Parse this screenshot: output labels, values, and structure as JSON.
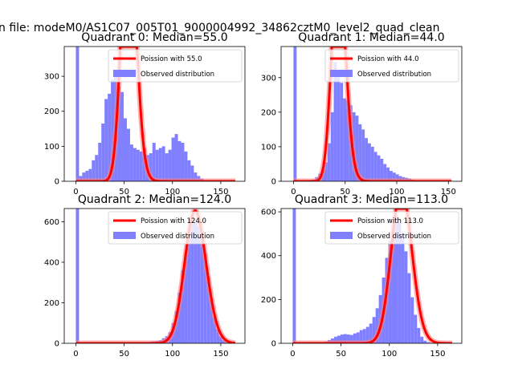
{
  "suptitle": "n file: modeM0/AS1C07_005T01_9000004992_34862cztM0_level2_quad_clean",
  "legend_labels": {
    "curve_prefix": "Poission with ",
    "hist": "Observed distribution"
  },
  "colors": {
    "hist": "#8080ff",
    "curve": "#ff0000",
    "curve_glow": "#ff8080"
  },
  "chart_data": [
    {
      "type": "bar",
      "title": "Quadrant 0: Median=55.0",
      "median": 55.0,
      "xlim": [
        -12,
        175
      ],
      "ylim": [
        0,
        385
      ],
      "xticks": [
        0,
        50,
        100,
        150
      ],
      "yticks": [
        0,
        100,
        200,
        300
      ],
      "bin_edges_start": 0,
      "bin_width": 3.3,
      "counts": [
        385,
        15,
        25,
        30,
        35,
        60,
        75,
        110,
        165,
        235,
        250,
        290,
        305,
        270,
        255,
        180,
        150,
        105,
        95,
        90,
        85,
        95,
        75,
        80,
        110,
        90,
        95,
        100,
        80,
        90,
        125,
        135,
        115,
        110,
        85,
        60,
        45,
        25,
        15,
        8,
        3,
        1
      ],
      "curve_label": "Poission with 55.0",
      "hist_label": "Observed distribution"
    },
    {
      "type": "bar",
      "title": "Quadrant 1: Median=44.0",
      "median": 44.0,
      "xlim": [
        -12,
        163
      ],
      "ylim": [
        0,
        390
      ],
      "xticks": [
        0,
        50,
        100,
        150
      ],
      "yticks": [
        0,
        100,
        200,
        300
      ],
      "bin_edges_start": 0,
      "bin_width": 3.0,
      "counts": [
        390,
        0,
        0,
        0,
        0,
        0,
        5,
        12,
        22,
        35,
        55,
        110,
        200,
        345,
        310,
        285,
        240,
        235,
        220,
        200,
        190,
        165,
        150,
        125,
        110,
        100,
        85,
        75,
        65,
        50,
        40,
        30,
        25,
        20,
        15,
        12,
        10,
        8,
        5,
        3,
        2,
        1
      ],
      "curve_label": "Poission with 44.0",
      "hist_label": "Observed distribution"
    },
    {
      "type": "bar",
      "title": "Quadrant 2: Median=124.0",
      "median": 124.0,
      "xlim": [
        -12,
        175
      ],
      "ylim": [
        0,
        665
      ],
      "xticks": [
        0,
        50,
        100,
        150
      ],
      "yticks": [
        0,
        200,
        400,
        600
      ],
      "bin_edges_start": 0,
      "bin_width": 3.3,
      "counts": [
        665,
        0,
        0,
        0,
        0,
        0,
        0,
        0,
        0,
        0,
        0,
        0,
        0,
        0,
        0,
        0,
        0,
        0,
        0,
        0,
        0,
        3,
        5,
        8,
        10,
        12,
        15,
        25,
        35,
        55,
        100,
        160,
        250,
        360,
        440,
        520,
        590,
        600,
        580,
        520,
        440,
        330,
        220,
        130,
        70,
        35,
        15,
        5,
        2
      ],
      "curve_label": "Poission with 124.0",
      "hist_label": "Observed distribution"
    },
    {
      "type": "bar",
      "title": "Quadrant 3: Median=113.0",
      "median": 113.0,
      "xlim": [
        -12,
        175
      ],
      "ylim": [
        0,
        615
      ],
      "xticks": [
        0,
        50,
        100,
        150
      ],
      "yticks": [
        0,
        200,
        400,
        600
      ],
      "bin_edges_start": 0,
      "bin_width": 3.3,
      "counts": [
        615,
        0,
        0,
        0,
        0,
        0,
        0,
        0,
        0,
        3,
        8,
        15,
        22,
        30,
        35,
        40,
        42,
        40,
        38,
        45,
        50,
        60,
        65,
        75,
        90,
        120,
        160,
        220,
        300,
        390,
        470,
        540,
        580,
        550,
        500,
        420,
        320,
        210,
        130,
        70,
        30,
        12,
        5,
        2
      ],
      "curve_label": "Poission with 113.0",
      "hist_label": "Observed distribution"
    }
  ]
}
